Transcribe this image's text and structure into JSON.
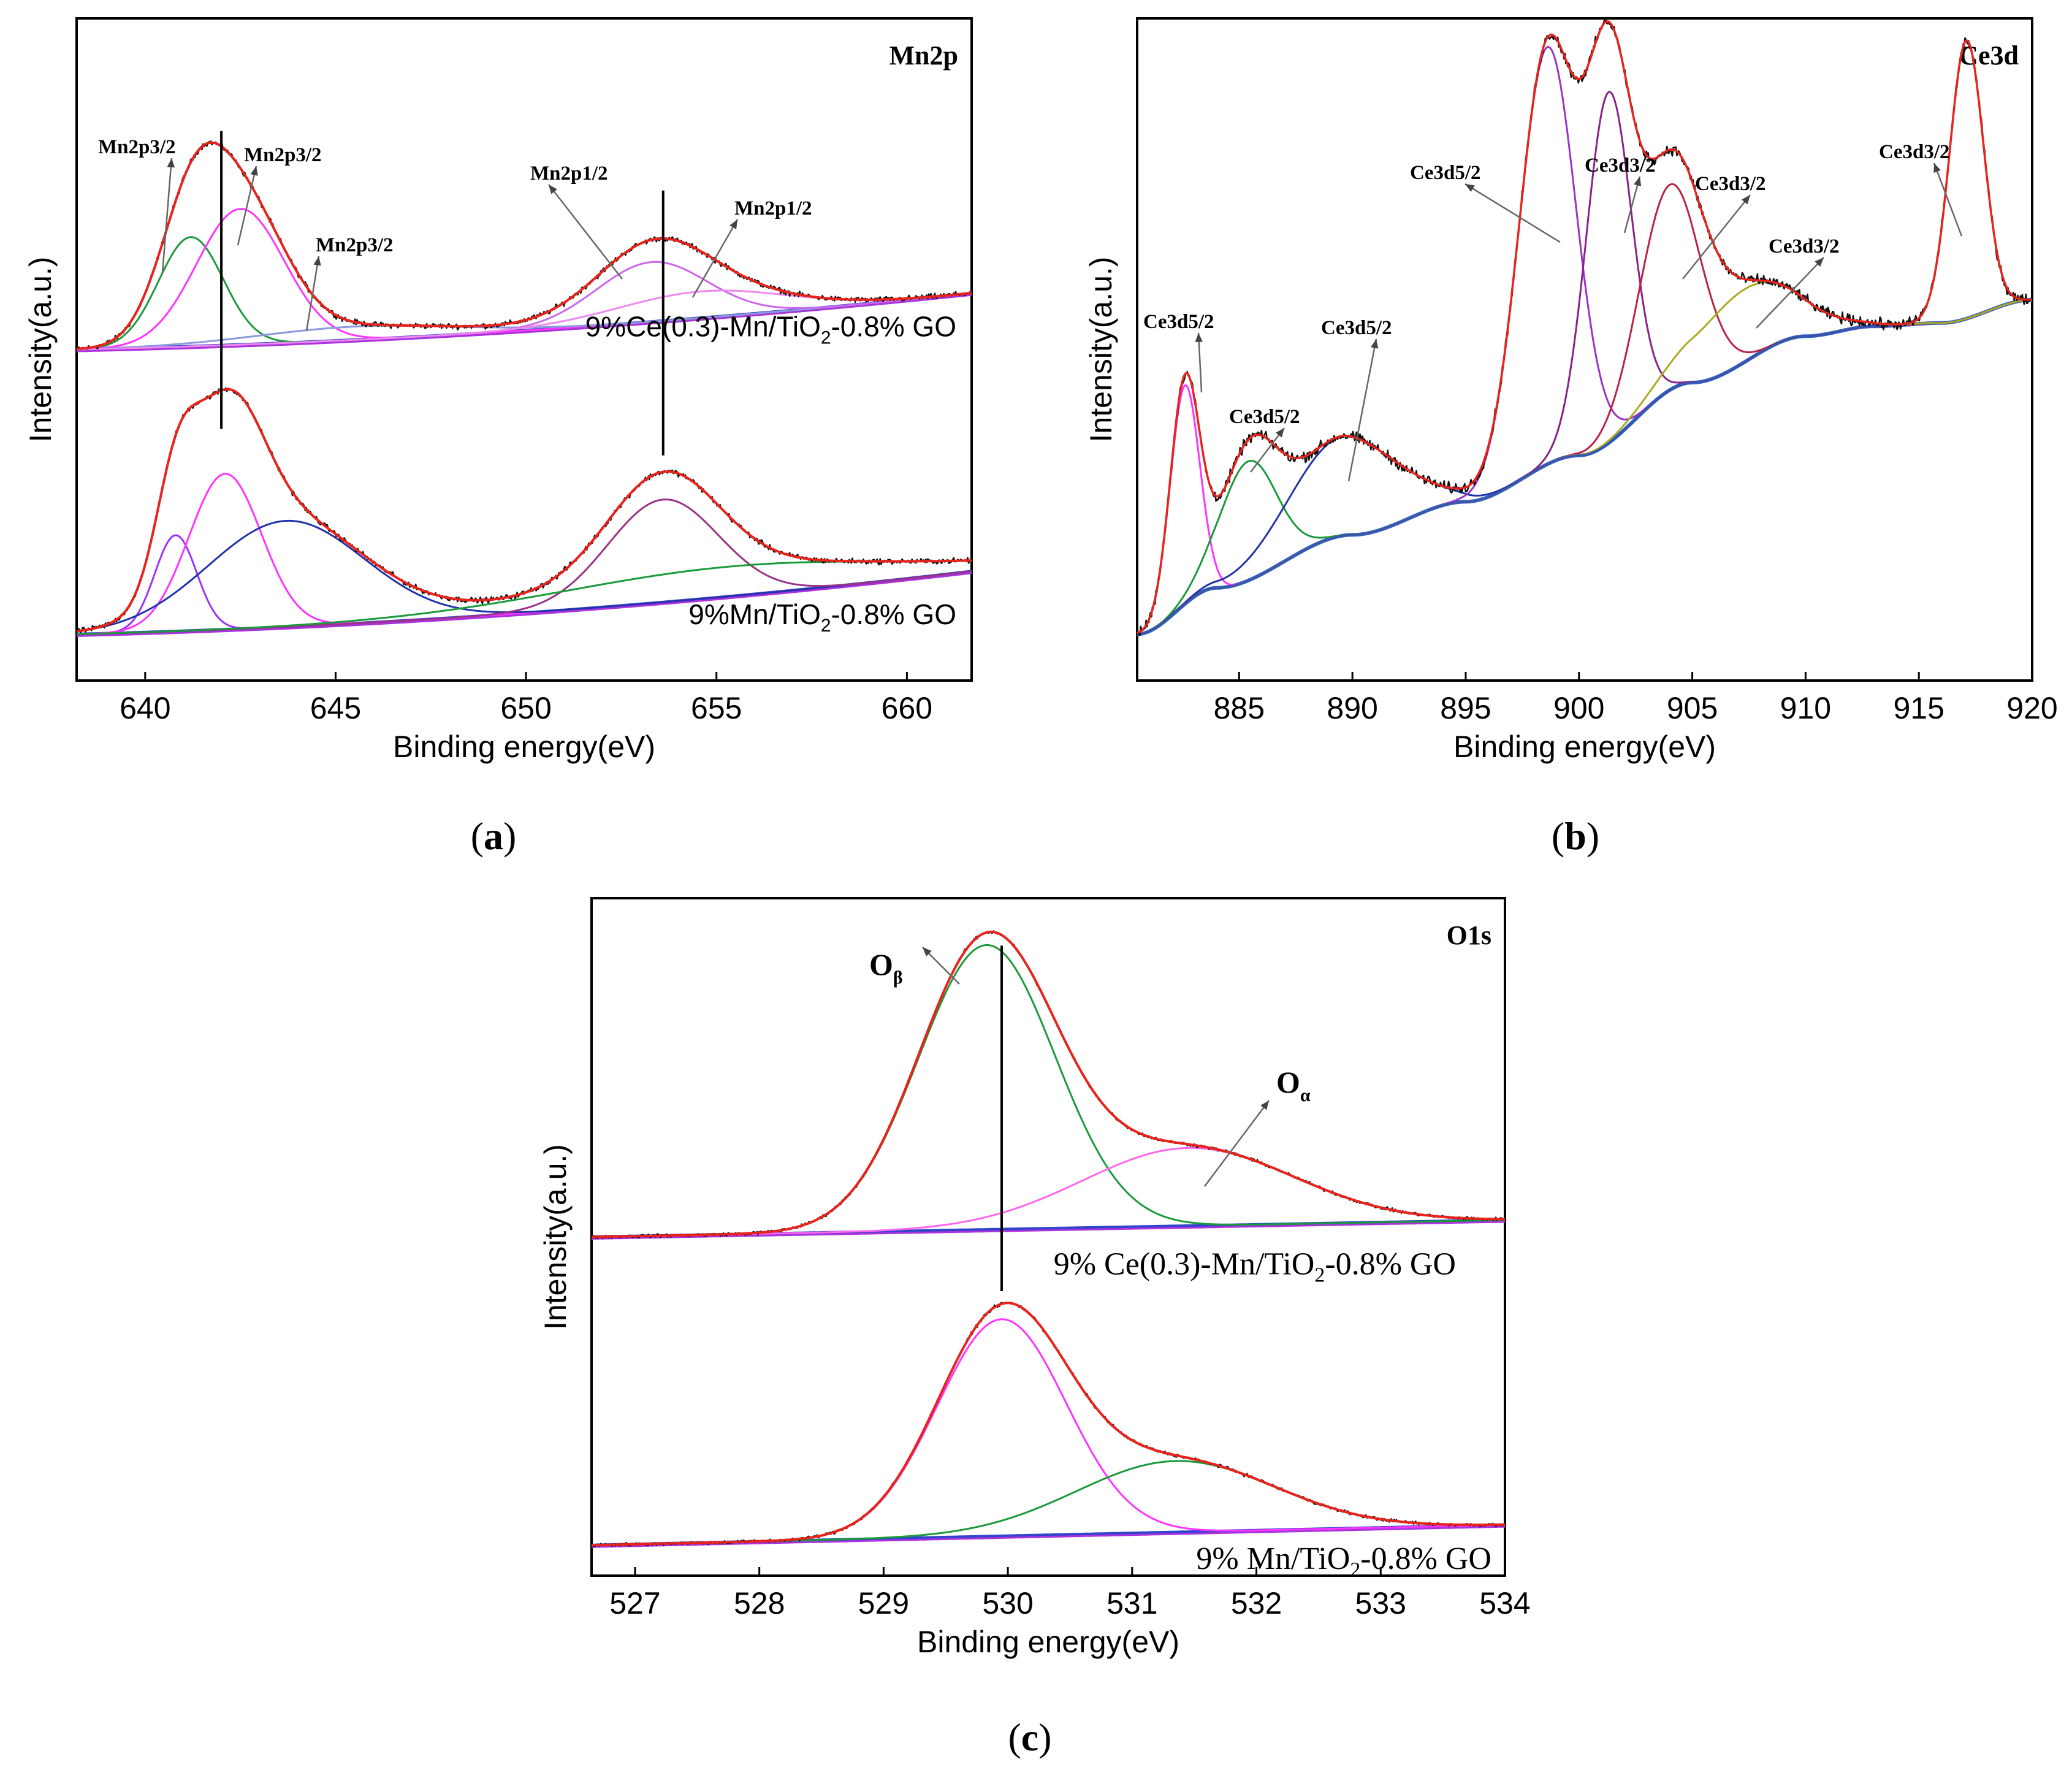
{
  "chart_data": [
    {
      "id": "a",
      "type": "line",
      "title": "Mn2p",
      "caption": "a",
      "xlabel": "Binding energy(eV)",
      "ylabel": "Intensity(a.u.)",
      "xlim": [
        638.2,
        661.7
      ],
      "xticks": [
        640,
        645,
        650,
        655,
        660
      ],
      "ylim": [
        0,
        1
      ],
      "grid": false,
      "guide_lines_x": [
        642.0,
        653.6
      ],
      "samples": [
        {
          "name": "9%Ce(0.3)-Mn/TiO2-0.8% GO",
          "label_main": "9%Ce(0.3)-Mn/TiO",
          "label_sub": "2",
          "label_tail": "-0.8% GO",
          "baseline_left": 0.5,
          "baseline_right": 0.585,
          "peaks": [
            {
              "label": "Mn2p3/2",
              "center": 641.2,
              "height": 0.165,
              "width": 0.85,
              "color": "#1a9a3a"
            },
            {
              "label": "Mn2p3/2",
              "center": 642.5,
              "height": 0.205,
              "width": 1.15,
              "color": "#ff33ff"
            },
            {
              "label": "Mn2p3/2",
              "center": 645.5,
              "height": 0.02,
              "width": 2.6,
              "color": "#8899dd"
            },
            {
              "label": "Mn2p1/2",
              "center": 653.3,
              "height": 0.09,
              "width": 1.45,
              "color": "#cc66ee"
            },
            {
              "label": "Mn2p1/2",
              "center": 654.6,
              "height": 0.04,
              "width": 2.2,
              "color": "#ee88ee"
            }
          ]
        },
        {
          "name": "9%Mn/TiO2-0.8% GO",
          "label_main": "9%Mn/TiO",
          "label_sub": "2",
          "label_tail": "-0.8% GO",
          "baseline_left": 0.07,
          "baseline_right": 0.165,
          "peaks": [
            {
              "label": "",
              "center": 640.8,
              "height": 0.145,
              "width": 0.55,
              "color": "#9933ff"
            },
            {
              "label": "",
              "center": 642.1,
              "height": 0.235,
              "width": 0.95,
              "color": "#ff33ff"
            },
            {
              "label": "",
              "center": 643.7,
              "height": 0.16,
              "width": 2.05,
              "color": "#2233aa"
            },
            {
              "label": "",
              "center": 653.6,
              "height": 0.155,
              "width": 1.45,
              "color": "#993388"
            },
            {
              "label": "",
              "center": 655.3,
              "height": 0.045,
              "width": 4.5,
              "color": "#1a9a3a"
            }
          ]
        }
      ]
    },
    {
      "id": "b",
      "type": "line",
      "title": "Ce3d",
      "caption": "b",
      "xlabel": "Binding energy(eV)",
      "ylabel": "Intensity(a.u.)",
      "xlim": [
        880.5,
        920
      ],
      "xticks": [
        885,
        890,
        895,
        900,
        905,
        910,
        915,
        920
      ],
      "ylim": [
        0,
        1
      ],
      "grid": false,
      "background_points": [
        [
          880.5,
          0.07
        ],
        [
          884,
          0.14
        ],
        [
          890,
          0.22
        ],
        [
          895,
          0.27
        ],
        [
          900,
          0.34
        ],
        [
          905,
          0.45
        ],
        [
          910,
          0.52
        ],
        [
          913,
          0.535
        ],
        [
          916,
          0.54
        ],
        [
          920,
          0.575
        ]
      ],
      "peaks": [
        {
          "label": "Ce3d5/2",
          "center": 882.6,
          "height": 0.33,
          "width": 0.65,
          "color": "#ff33ff"
        },
        {
          "label": "Ce3d5/2",
          "center": 885.4,
          "height": 0.18,
          "width": 1.25,
          "color": "#1a9a3a"
        },
        {
          "label": "Ce3d5/2",
          "center": 889.6,
          "height": 0.15,
          "width": 2.4,
          "color": "#2233aa"
        },
        {
          "label": "Ce3d5/2",
          "center": 898.6,
          "height": 0.63,
          "width": 1.25,
          "color": "#9933cc"
        },
        {
          "label": "Ce3d3/2",
          "center": 901.3,
          "height": 0.53,
          "width": 1.0,
          "color": "#882288"
        },
        {
          "label": "Ce3d3/2",
          "center": 904.0,
          "height": 0.31,
          "width": 1.35,
          "color": "#bb2244"
        },
        {
          "label": "Ce3d3/2",
          "center": 907.3,
          "height": 0.11,
          "width": 2.3,
          "color": "#aaaa22"
        },
        {
          "label": "Ce3d3/2",
          "center": 917.1,
          "height": 0.42,
          "width": 0.75,
          "color": "#3355aa"
        }
      ]
    },
    {
      "id": "c",
      "type": "line",
      "title": "O1s",
      "caption": "c",
      "xlabel": "Binding energy(eV)",
      "ylabel": "Intensity(a.u.)",
      "xlim": [
        526.65,
        534
      ],
      "xticks": [
        527,
        528,
        529,
        530,
        531,
        532,
        533,
        534
      ],
      "ylim": [
        0,
        1
      ],
      "grid": false,
      "guide_line_x": 529.95,
      "peak_labels": {
        "beta": "O",
        "beta_sub": "β",
        "alpha": "O",
        "alpha_sub": "α"
      },
      "samples": [
        {
          "name": "9% Ce(0.3)-Mn/TiO2-0.8% GO",
          "label_main": "9% Ce(0.3)-Mn/TiO",
          "label_sub": "2",
          "label_tail": "-0.8% GO",
          "baseline_left": 0.5,
          "baseline_right": 0.525,
          "peaks": [
            {
              "label": "Oβ",
              "center": 529.83,
              "height": 0.42,
              "width": 0.55,
              "color": "#1a9a3a"
            },
            {
              "label": "Oα",
              "center": 531.45,
              "height": 0.115,
              "width": 0.85,
              "color": "#ff66ee"
            }
          ]
        },
        {
          "name": "9% Mn/TiO2-0.8% GO",
          "label_main": "9% Mn/TiO",
          "label_sub": "2",
          "label_tail": "-0.8% GO",
          "baseline_left": 0.045,
          "baseline_right": 0.075,
          "peaks": [
            {
              "label": "",
              "center": 529.95,
              "height": 0.32,
              "width": 0.52,
              "color": "#ff33ff"
            },
            {
              "label": "",
              "center": 531.35,
              "height": 0.105,
              "width": 0.8,
              "color": "#1a9a3a"
            }
          ]
        }
      ]
    }
  ]
}
